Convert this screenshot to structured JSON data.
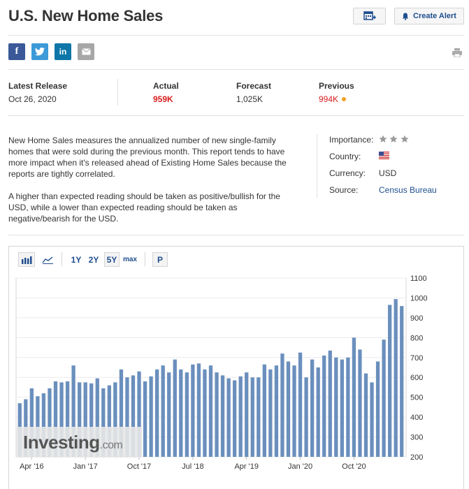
{
  "header": {
    "title": "U.S. New Home Sales",
    "create_alert_label": "Create Alert"
  },
  "social": {
    "facebook": "f",
    "twitter": "t",
    "linkedin": "in",
    "email": "✉"
  },
  "release": {
    "latest_label": "Latest Release",
    "latest_date": "Oct 26, 2020",
    "actual_label": "Actual",
    "actual_value": "959K",
    "forecast_label": "Forecast",
    "forecast_value": "1,025K",
    "previous_label": "Previous",
    "previous_value": "994K"
  },
  "description": {
    "p1": "New Home Sales measures the annualized number of new single-family homes that were sold during the previous month. This report tends to have more impact when it's released ahead of Existing Home Sales because the reports are tightly correlated.",
    "p2": "A higher than expected reading should be taken as positive/bullish for the USD, while a lower than expected reading should be taken as negative/bearish for the USD."
  },
  "info": {
    "importance_label": "Importance:",
    "importance_stars": 3,
    "country_label": "Country:",
    "currency_label": "Currency:",
    "currency_value": "USD",
    "source_label": "Source:",
    "source_value": "Census Bureau"
  },
  "toolbar": {
    "range_1y": "1Y",
    "range_2y": "2Y",
    "range_5y": "5Y",
    "range_max": "max",
    "p_label": "P",
    "selected_range": "5Y"
  },
  "watermark": {
    "brand": "Investing",
    "suffix": ".com"
  },
  "colors": {
    "accent": "#1f4e8f",
    "bar": "#6a8fbd",
    "actual_red": "#d81d1d",
    "previous_dot": "#f0a020"
  },
  "chart_data": {
    "type": "bar",
    "x_tick_labels": [
      "Apr '16",
      "Jan '17",
      "Oct '17",
      "Jul '18",
      "Apr '19",
      "Jan '20",
      "Oct '20"
    ],
    "y_tick_labels": [
      "1100",
      "1000",
      "900",
      "800",
      "700",
      "600",
      "500",
      "400",
      "300",
      "200"
    ],
    "ylim": [
      200,
      1100
    ],
    "values": [
      470,
      490,
      545,
      505,
      520,
      545,
      580,
      575,
      580,
      660,
      575,
      575,
      570,
      595,
      545,
      560,
      575,
      640,
      600,
      610,
      630,
      580,
      605,
      640,
      660,
      625,
      690,
      640,
      625,
      665,
      670,
      640,
      660,
      625,
      610,
      595,
      585,
      605,
      625,
      600,
      600,
      665,
      640,
      660,
      720,
      680,
      660,
      725,
      600,
      690,
      650,
      710,
      735,
      700,
      690,
      700,
      800,
      740,
      620,
      575,
      680,
      790,
      965,
      994,
      959
    ]
  }
}
